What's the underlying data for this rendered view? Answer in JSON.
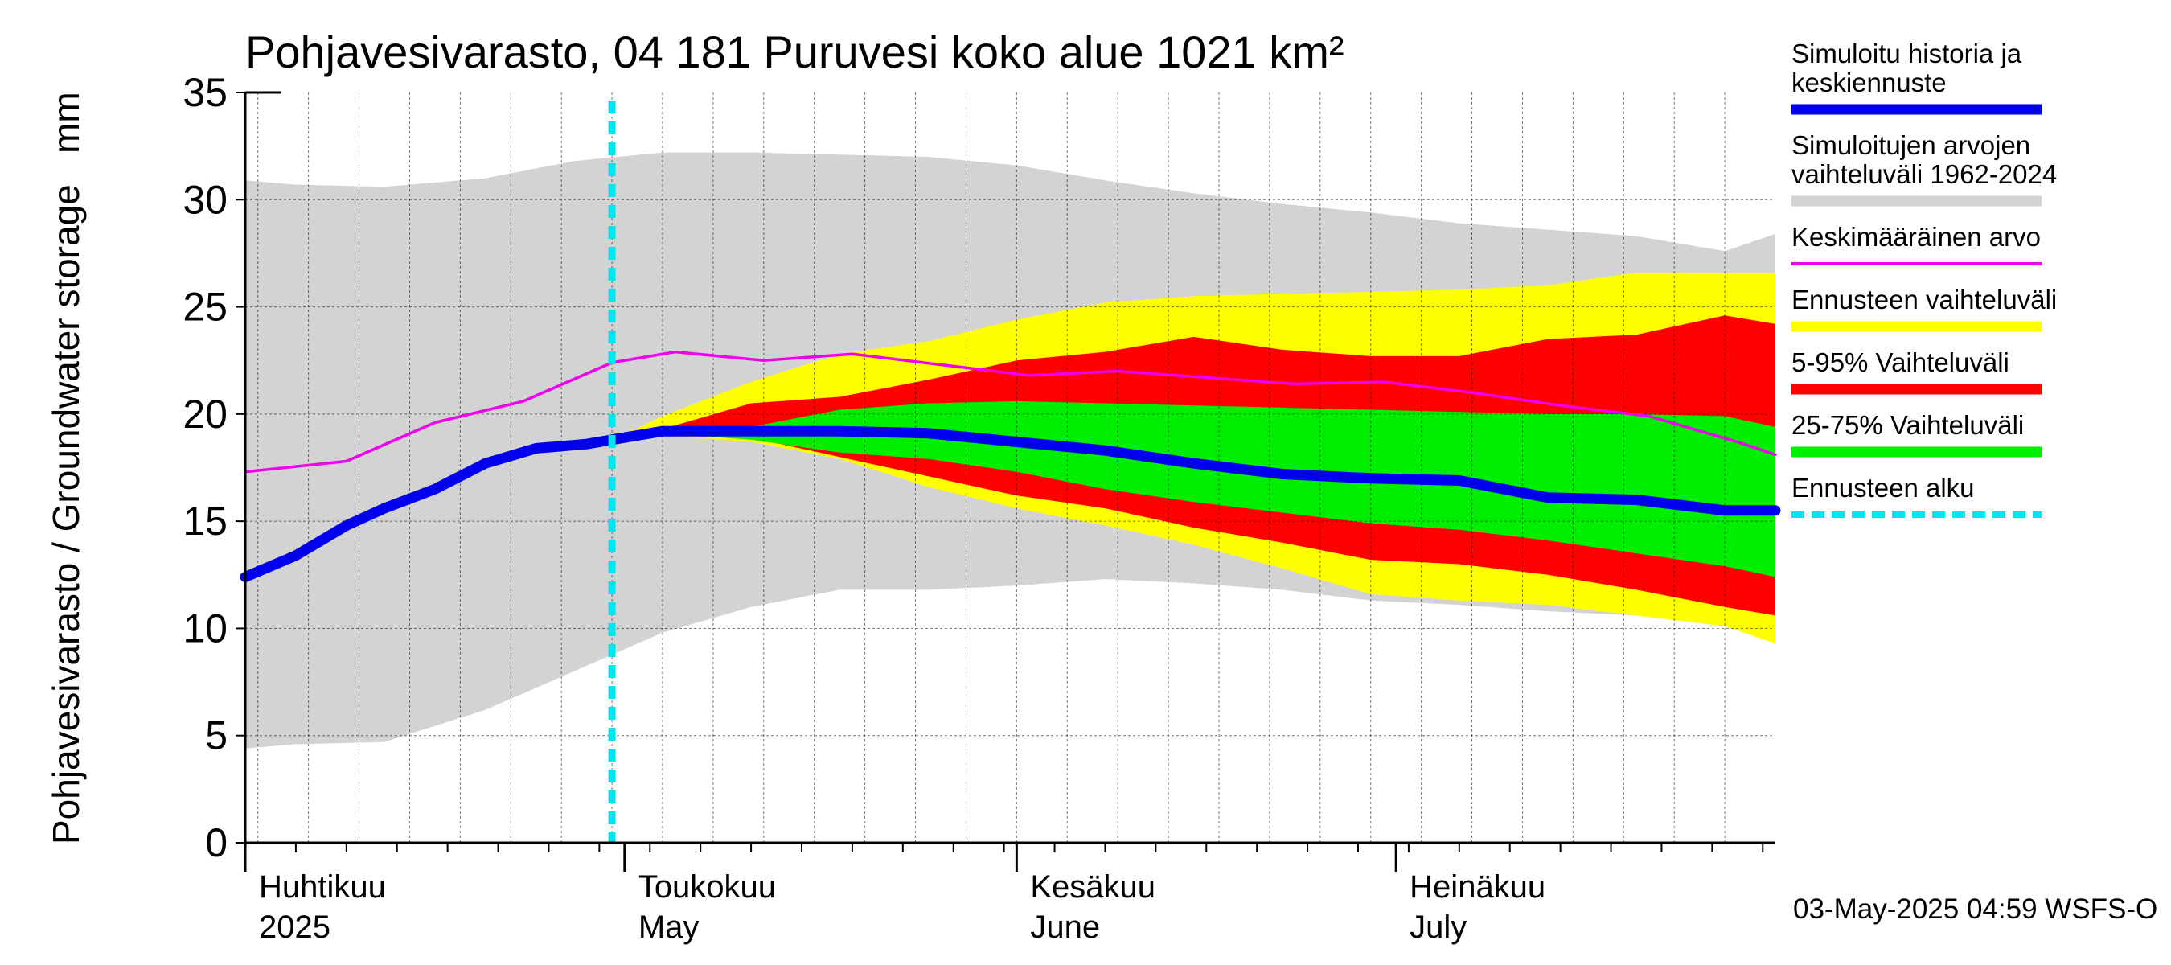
{
  "chart_data": {
    "type": "area",
    "title": "Pohjavesivarasto, 04 181 Puruvesi koko alue 1021 km²",
    "ylabel": "Pohjavesivarasto / Groundwater storage   mm",
    "ylim": [
      0,
      35
    ],
    "yticks": [
      0,
      5,
      10,
      15,
      20,
      25,
      30,
      35
    ],
    "xlim": [
      "2025-04-01",
      "2025-07-31"
    ],
    "month_labels": [
      {
        "fi": "Huhtikuu",
        "en": "2025",
        "date": "2025-04-01"
      },
      {
        "fi": "Toukokuu",
        "en": "May",
        "date": "2025-05-01"
      },
      {
        "fi": "Kesäkuu",
        "en": "June",
        "date": "2025-06-01"
      },
      {
        "fi": "Heinäkuu",
        "en": "July",
        "date": "2025-07-01"
      }
    ],
    "forecast_start": "2025-04-30",
    "footer": "03-May-2025 04:59 WSFS-O",
    "grid": true,
    "legend_position": "right",
    "colors": {
      "history": "#0000ee",
      "sim_range": "#d3d3d3",
      "mean": "#ee00ee",
      "forecast_range": "#ffff00",
      "p5_95": "#ff0000",
      "p25_75": "#00ee00",
      "forecast_start": "#00e5ee"
    },
    "legend": [
      {
        "key": "history",
        "label": "Simuloitu historia ja keskiennuste",
        "lines": [
          "Simuloitu historia ja",
          "keskiennuste"
        ]
      },
      {
        "key": "sim_range",
        "label": "Simuloitujen arvojen vaihteluväli 1962-2024",
        "lines": [
          "Simuloitujen arvojen",
          "vaihteluväli 1962-2024"
        ]
      },
      {
        "key": "mean",
        "label": "Keskimääräinen arvo",
        "lines": [
          "Keskimääräinen arvo"
        ]
      },
      {
        "key": "forecast_range",
        "label": "Ennusteen vaihteluväli",
        "lines": [
          "Ennusteen vaihteluväli"
        ]
      },
      {
        "key": "p5_95",
        "label": "5-95% Vaihteluväli",
        "lines": [
          "5-95% Vaihteluväli"
        ]
      },
      {
        "key": "p25_75",
        "label": "25-75% Vaihteluväli",
        "lines": [
          "25-75% Vaihteluväli"
        ]
      },
      {
        "key": "forecast_start",
        "label": "Ennusteen alku",
        "lines": [
          "Ennusteen alku"
        ]
      }
    ],
    "series": {
      "sim_range_upper": {
        "x": [
          "2025-04-01",
          "2025-04-05",
          "2025-04-12",
          "2025-04-20",
          "2025-04-27",
          "2025-05-04",
          "2025-05-11",
          "2025-05-18",
          "2025-05-25",
          "2025-06-01",
          "2025-06-08",
          "2025-06-15",
          "2025-06-22",
          "2025-06-29",
          "2025-07-06",
          "2025-07-13",
          "2025-07-20",
          "2025-07-27",
          "2025-07-31"
        ],
        "y": [
          30.9,
          30.7,
          30.6,
          31.0,
          31.8,
          32.2,
          32.2,
          32.1,
          32.0,
          31.6,
          30.9,
          30.3,
          29.8,
          29.4,
          28.9,
          28.6,
          28.3,
          27.6,
          28.4
        ]
      },
      "sim_range_lower": {
        "x": [
          "2025-04-01",
          "2025-04-05",
          "2025-04-12",
          "2025-04-20",
          "2025-04-27",
          "2025-05-04",
          "2025-05-11",
          "2025-05-18",
          "2025-05-25",
          "2025-06-01",
          "2025-06-08",
          "2025-06-15",
          "2025-06-22",
          "2025-06-29",
          "2025-07-06",
          "2025-07-13",
          "2025-07-20",
          "2025-07-27",
          "2025-07-31"
        ],
        "y": [
          4.4,
          4.6,
          4.7,
          6.2,
          8.0,
          9.8,
          11.0,
          11.8,
          11.8,
          12.0,
          12.3,
          12.1,
          11.8,
          11.3,
          11.1,
          10.8,
          10.6,
          10.4,
          10.2
        ]
      },
      "history": {
        "x": [
          "2025-04-01",
          "2025-04-05",
          "2025-04-09",
          "2025-04-12",
          "2025-04-16",
          "2025-04-20",
          "2025-04-24",
          "2025-04-28",
          "2025-04-30"
        ],
        "y": [
          12.4,
          13.4,
          14.8,
          15.6,
          16.5,
          17.7,
          18.4,
          18.6,
          18.8
        ]
      },
      "median": {
        "x": [
          "2025-04-30",
          "2025-05-04",
          "2025-05-11",
          "2025-05-18",
          "2025-05-25",
          "2025-06-01",
          "2025-06-08",
          "2025-06-15",
          "2025-06-22",
          "2025-06-29",
          "2025-07-06",
          "2025-07-13",
          "2025-07-20",
          "2025-07-27",
          "2025-07-31"
        ],
        "y": [
          18.8,
          19.2,
          19.2,
          19.2,
          19.1,
          18.7,
          18.3,
          17.7,
          17.2,
          17.0,
          16.9,
          16.1,
          16.0,
          15.5,
          15.5
        ]
      },
      "mean": {
        "x": [
          "2025-04-01",
          "2025-04-09",
          "2025-04-16",
          "2025-04-23",
          "2025-04-30",
          "2025-05-05",
          "2025-05-12",
          "2025-05-19",
          "2025-05-26",
          "2025-06-02",
          "2025-06-09",
          "2025-06-16",
          "2025-06-23",
          "2025-06-30",
          "2025-07-07",
          "2025-07-14",
          "2025-07-21",
          "2025-07-28",
          "2025-07-31"
        ],
        "y": [
          17.3,
          17.8,
          19.6,
          20.6,
          22.4,
          22.9,
          22.5,
          22.8,
          22.3,
          21.8,
          22.0,
          21.7,
          21.4,
          21.5,
          21.0,
          20.4,
          19.9,
          18.7,
          18.1
        ]
      },
      "forecast_range_upper": {
        "x": [
          "2025-04-30",
          "2025-05-04",
          "2025-05-11",
          "2025-05-18",
          "2025-05-25",
          "2025-06-01",
          "2025-06-08",
          "2025-06-15",
          "2025-06-22",
          "2025-06-29",
          "2025-07-06",
          "2025-07-13",
          "2025-07-20",
          "2025-07-27",
          "2025-07-31"
        ],
        "y": [
          18.8,
          19.9,
          21.5,
          22.8,
          23.4,
          24.4,
          25.2,
          25.5,
          25.6,
          25.7,
          25.8,
          26.0,
          26.6,
          26.6,
          26.6
        ]
      },
      "forecast_range_lower": {
        "x": [
          "2025-04-30",
          "2025-05-04",
          "2025-05-11",
          "2025-05-18",
          "2025-05-25",
          "2025-06-01",
          "2025-06-08",
          "2025-06-15",
          "2025-06-22",
          "2025-06-29",
          "2025-07-06",
          "2025-07-13",
          "2025-07-20",
          "2025-07-27",
          "2025-07-31"
        ],
        "y": [
          18.8,
          19.0,
          18.7,
          17.9,
          16.6,
          15.6,
          14.8,
          13.9,
          12.8,
          11.6,
          11.3,
          11.1,
          10.6,
          10.1,
          9.3
        ]
      },
      "p5_95_upper": {
        "x": [
          "2025-04-30",
          "2025-05-04",
          "2025-05-11",
          "2025-05-18",
          "2025-05-25",
          "2025-06-01",
          "2025-06-08",
          "2025-06-15",
          "2025-06-22",
          "2025-06-29",
          "2025-07-06",
          "2025-07-13",
          "2025-07-20",
          "2025-07-27",
          "2025-07-31"
        ],
        "y": [
          18.8,
          19.3,
          20.5,
          20.8,
          21.6,
          22.5,
          22.9,
          23.6,
          23.0,
          22.7,
          22.7,
          23.5,
          23.7,
          24.6,
          24.2
        ]
      },
      "p5_95_lower": {
        "x": [
          "2025-04-30",
          "2025-05-04",
          "2025-05-11",
          "2025-05-18",
          "2025-05-25",
          "2025-06-01",
          "2025-06-08",
          "2025-06-15",
          "2025-06-22",
          "2025-06-29",
          "2025-07-06",
          "2025-07-13",
          "2025-07-20",
          "2025-07-27",
          "2025-07-31"
        ],
        "y": [
          18.8,
          19.0,
          18.9,
          18.0,
          17.1,
          16.2,
          15.6,
          14.7,
          14.0,
          13.2,
          13.0,
          12.5,
          11.8,
          11.0,
          10.6
        ]
      },
      "p25_75_upper": {
        "x": [
          "2025-04-30",
          "2025-05-04",
          "2025-05-11",
          "2025-05-18",
          "2025-05-25",
          "2025-06-01",
          "2025-06-08",
          "2025-06-15",
          "2025-06-22",
          "2025-06-29",
          "2025-07-06",
          "2025-07-13",
          "2025-07-20",
          "2025-07-27",
          "2025-07-31"
        ],
        "y": [
          18.8,
          19.1,
          19.4,
          20.2,
          20.5,
          20.6,
          20.5,
          20.4,
          20.3,
          20.2,
          20.1,
          20.0,
          20.0,
          19.9,
          19.4
        ]
      },
      "p25_75_lower": {
        "x": [
          "2025-04-30",
          "2025-05-04",
          "2025-05-11",
          "2025-05-18",
          "2025-05-25",
          "2025-06-01",
          "2025-06-08",
          "2025-06-15",
          "2025-06-22",
          "2025-06-29",
          "2025-07-06",
          "2025-07-13",
          "2025-07-20",
          "2025-07-27",
          "2025-07-31"
        ],
        "y": [
          18.8,
          19.1,
          18.8,
          18.2,
          17.9,
          17.3,
          16.5,
          15.9,
          15.4,
          14.9,
          14.6,
          14.1,
          13.5,
          12.9,
          12.4
        ]
      }
    }
  }
}
